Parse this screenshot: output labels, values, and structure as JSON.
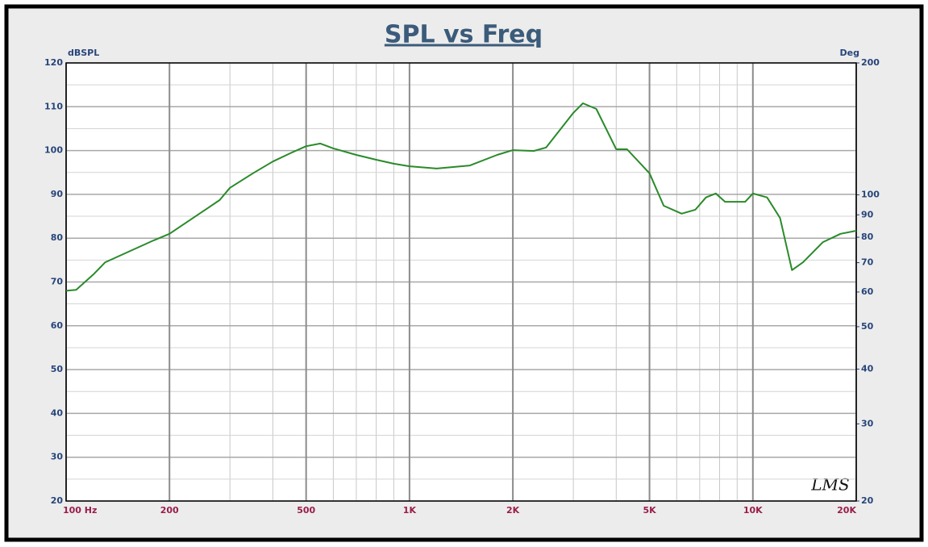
{
  "chart_data": {
    "type": "line",
    "title": "SPL vs Freq",
    "y_label": "dBSPL",
    "y2_label": "Deg",
    "annotation": "LMS",
    "xscale": "log",
    "y2scale": "log",
    "grid": true,
    "xlim": [
      100,
      20000
    ],
    "xticks": [
      {
        "value": 100,
        "label": "100 Hz"
      },
      200,
      500,
      {
        "value": 1000,
        "label": "1K"
      },
      {
        "value": 2000,
        "label": "2K"
      },
      {
        "value": 5000,
        "label": "5K"
      },
      {
        "value": 10000,
        "label": "10K"
      },
      {
        "value": 20000,
        "label": "20K"
      }
    ],
    "ylim": [
      20,
      120
    ],
    "yticks": [
      20,
      30,
      40,
      50,
      60,
      70,
      80,
      90,
      100,
      110,
      120
    ],
    "y2lim": [
      20,
      200
    ],
    "y2ticks": [
      20,
      30,
      40,
      50,
      60,
      70,
      80,
      90,
      100,
      200
    ],
    "x": [
      100,
      107,
      120,
      130,
      150,
      180,
      200,
      250,
      280,
      300,
      350,
      400,
      450,
      500,
      550,
      600,
      700,
      800,
      900,
      1000,
      1200,
      1500,
      1800,
      2000,
      2300,
      2500,
      3000,
      3200,
      3500,
      4000,
      4300,
      5000,
      5500,
      6200,
      6800,
      7300,
      7800,
      8300,
      9000,
      9500,
      10000,
      11000,
      12000,
      13000,
      14000,
      16000,
      18000,
      20000
    ],
    "series": [
      {
        "name": "SPL",
        "color": "#2a8a2a",
        "values": [
          68,
          68.2,
          71.7,
          74.5,
          76.7,
          79.5,
          81,
          86.1,
          88.7,
          91.5,
          94.8,
          97.5,
          99.4,
          101,
          101.6,
          100.5,
          99,
          97.9,
          97,
          96.4,
          95.9,
          96.6,
          99,
          100.1,
          99.9,
          100.7,
          108.6,
          110.8,
          109.5,
          100.3,
          100.3,
          94.8,
          87.4,
          85.6,
          86.5,
          89.3,
          90.2,
          88.3,
          88.3,
          88.3,
          90.2,
          89.3,
          84.6,
          72.7,
          74.5,
          79.1,
          81,
          81.7
        ]
      }
    ]
  }
}
